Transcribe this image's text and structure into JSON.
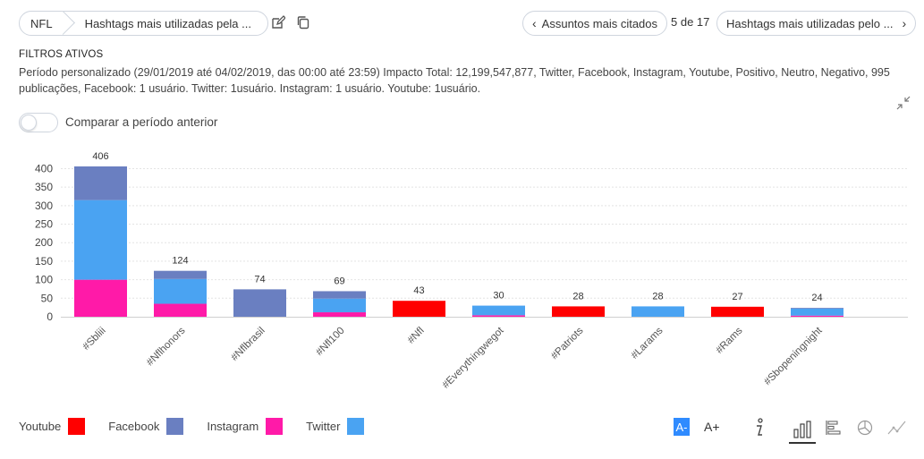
{
  "breadcrumb": {
    "root": "NFL",
    "current": "Hashtags mais utilizadas pela ..."
  },
  "nav": {
    "prev_label": "Assuntos mais citados",
    "counter": "5 de 17",
    "next_label": "Hashtags mais utilizadas pelo ..."
  },
  "filters": {
    "title": "FILTROS ATIVOS",
    "text": "Período personalizado (29/01/2019 até 04/02/2019, das 00:00 até 23:59) Impacto Total: 12,199,547,877, Twitter, Facebook, Instagram, Youtube, Positivo, Neutro, Negativo, 995 publicações, Facebook: 1 usuário. Twitter: 1usuário. Instagram: 1 usuário. Youtube: 1usuário."
  },
  "compare": {
    "label": "Comparar a período anterior",
    "enabled": false
  },
  "colors": {
    "youtube": "#ff0000",
    "facebook": "#6a7fc1",
    "instagram": "#ff1aa8",
    "twitter": "#4aa3f2",
    "accent": "#2f8bff"
  },
  "toolbar": {
    "font_decrease": "A-",
    "font_increase": "A+",
    "icons": [
      "info-icon",
      "bar-chart-icon",
      "horizontal-bar-icon",
      "pie-chart-icon",
      "line-chart-icon"
    ]
  },
  "chart_data": {
    "type": "bar",
    "stacked": true,
    "categories": [
      "#Sbliii",
      "#Nflhonors",
      "#Nflbrasil",
      "#Nfl100",
      "#Nfl",
      "#Everythingwegot",
      "#Patriots",
      "#Larams",
      "#Rams",
      "#Sbopeningnight"
    ],
    "totals": [
      406,
      124,
      74,
      69,
      43,
      30,
      28,
      28,
      27,
      24
    ],
    "series": [
      {
        "name": "Youtube",
        "color": "#ff0000",
        "values": [
          0,
          0,
          0,
          0,
          43,
          0,
          28,
          0,
          27,
          0
        ]
      },
      {
        "name": "Facebook",
        "color": "#6a7fc1",
        "values": [
          91,
          22,
          74,
          20,
          0,
          0,
          0,
          0,
          0,
          2
        ]
      },
      {
        "name": "Instagram",
        "color": "#ff1aa8",
        "values": [
          100,
          35,
          0,
          12,
          0,
          4,
          0,
          0,
          0,
          3
        ]
      },
      {
        "name": "Twitter",
        "color": "#4aa3f2",
        "values": [
          215,
          67,
          0,
          37,
          0,
          26,
          0,
          28,
          0,
          19
        ]
      }
    ],
    "stack_order": [
      "Instagram",
      "Twitter",
      "Facebook",
      "Youtube"
    ],
    "yticks": [
      0,
      50,
      100,
      150,
      200,
      250,
      300,
      350,
      400
    ],
    "ylim": [
      0,
      406
    ],
    "grid": true,
    "legend_position": "bottom-left"
  }
}
